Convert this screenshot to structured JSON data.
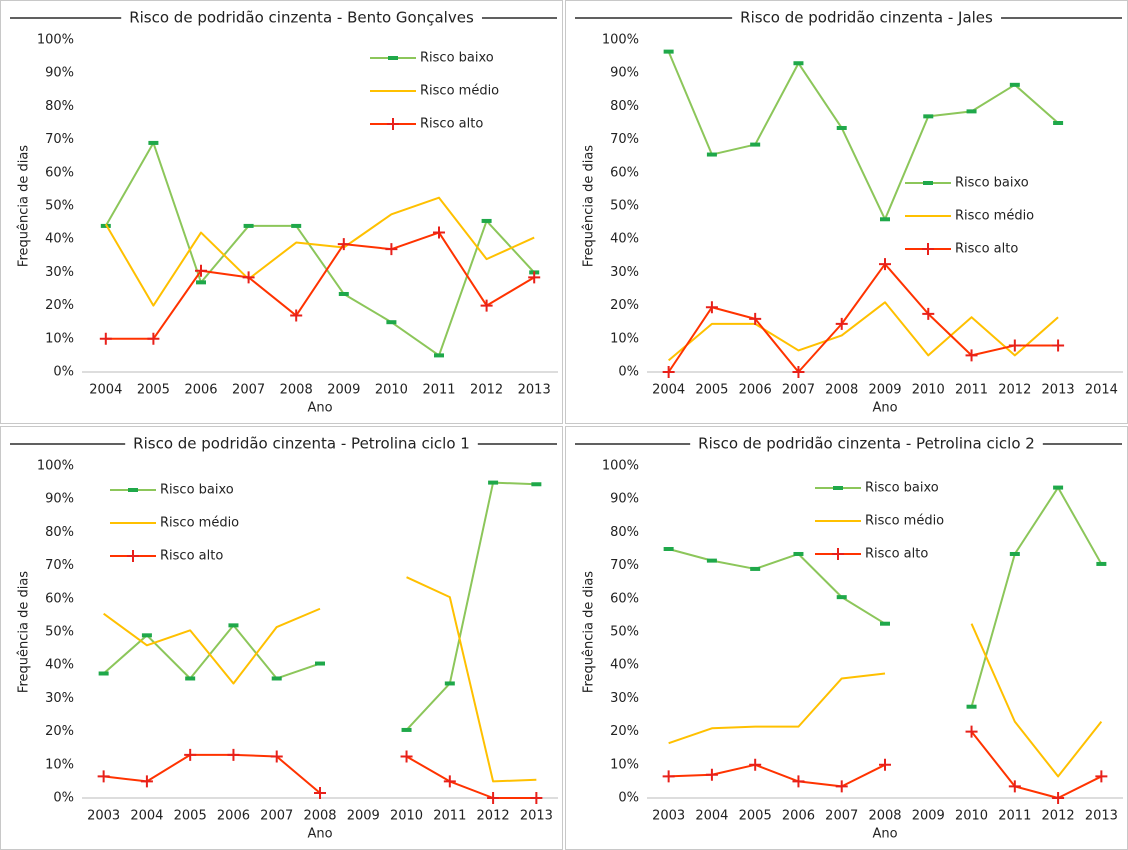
{
  "chart_data": [
    {
      "type": "line",
      "title": "Risco de podridão cinzenta - Bento Gonçalves",
      "x_label": "Ano",
      "y_label": "Frequência de dias",
      "categories": [
        "2004",
        "2005",
        "2006",
        "2007",
        "2008",
        "2009",
        "2010",
        "2011",
        "2012",
        "2013"
      ],
      "ylim": [
        0,
        100
      ],
      "yticks": [
        {
          "value": 0,
          "label": "0%"
        },
        {
          "value": 10,
          "label": "10%"
        },
        {
          "value": 20,
          "label": "20%"
        },
        {
          "value": 30,
          "label": "30%"
        },
        {
          "value": 40,
          "label": "40%"
        },
        {
          "value": 50,
          "label": "50%"
        },
        {
          "value": 60,
          "label": "60%"
        },
        {
          "value": 70,
          "label": "70%"
        },
        {
          "value": 80,
          "label": "80%"
        },
        {
          "value": 90,
          "label": "90%"
        },
        {
          "value": 100,
          "label": "100%"
        }
      ],
      "grid": false,
      "legend": "upper right",
      "series": [
        {
          "name": "Risco baixo",
          "color": "#8cc65a",
          "marker": "dash",
          "values": [
            44,
            69,
            27,
            44,
            44,
            23.5,
            15,
            5,
            45.5,
            30
          ]
        },
        {
          "name": "Risco médio",
          "color": "#ffc000",
          "marker": "none",
          "values": [
            44.5,
            20,
            42,
            28,
            39,
            37.5,
            47.5,
            52.5,
            34,
            40.5
          ]
        },
        {
          "name": "Risco alto",
          "color": "#ff3300",
          "marker": "plus",
          "values": [
            10,
            10,
            30.5,
            28.5,
            17,
            38.5,
            37,
            42,
            20,
            28.5
          ]
        }
      ]
    },
    {
      "type": "line",
      "title": "Risco de podridão cinzenta - Jales",
      "x_label": "Ano",
      "y_label": "Frequência de dias",
      "categories": [
        "2004",
        "2005",
        "2006",
        "2007",
        "2008",
        "2009",
        "2010",
        "2011",
        "2012",
        "2013",
        "2014"
      ],
      "ylim": [
        0,
        100
      ],
      "yticks": [
        {
          "value": 0,
          "label": "0%"
        },
        {
          "value": 10,
          "label": "10%"
        },
        {
          "value": 20,
          "label": "20%"
        },
        {
          "value": 30,
          "label": "30%"
        },
        {
          "value": 40,
          "label": "40%"
        },
        {
          "value": 50,
          "label": "50%"
        },
        {
          "value": 60,
          "label": "60%"
        },
        {
          "value": 70,
          "label": "70%"
        },
        {
          "value": 80,
          "label": "80%"
        },
        {
          "value": 90,
          "label": "90%"
        },
        {
          "value": 100,
          "label": "100%"
        }
      ],
      "grid": false,
      "legend": "center right",
      "series": [
        {
          "name": "Risco baixo",
          "color": "#8cc65a",
          "marker": "dash",
          "values": [
            96.5,
            65.5,
            68.5,
            93,
            73.5,
            46,
            77,
            78.5,
            86.5,
            75,
            null
          ]
        },
        {
          "name": "Risco médio",
          "color": "#ffc000",
          "marker": "none",
          "values": [
            3.5,
            14.5,
            14.5,
            6.5,
            11,
            21,
            5,
            16.5,
            5,
            16.5,
            null
          ]
        },
        {
          "name": "Risco alto",
          "color": "#ff3300",
          "marker": "plus",
          "values": [
            0,
            19.5,
            16,
            0,
            14.5,
            32.5,
            17.5,
            5,
            8,
            8,
            null
          ]
        }
      ]
    },
    {
      "type": "line",
      "title": "Risco de podridão cinzenta - Petrolina ciclo 1",
      "x_label": "Ano",
      "y_label": "Frequência de dias",
      "categories": [
        "2003",
        "2004",
        "2005",
        "2006",
        "2007",
        "2008",
        "2009",
        "2010",
        "2011",
        "2012",
        "2013"
      ],
      "ylim": [
        0,
        100
      ],
      "yticks": [
        {
          "value": 0,
          "label": "0%"
        },
        {
          "value": 10,
          "label": "10%"
        },
        {
          "value": 20,
          "label": "20%"
        },
        {
          "value": 30,
          "label": "30%"
        },
        {
          "value": 40,
          "label": "40%"
        },
        {
          "value": 50,
          "label": "50%"
        },
        {
          "value": 60,
          "label": "60%"
        },
        {
          "value": 70,
          "label": "70%"
        },
        {
          "value": 80,
          "label": "80%"
        },
        {
          "value": 90,
          "label": "90%"
        },
        {
          "value": 100,
          "label": "100%"
        }
      ],
      "grid": false,
      "legend": "upper left",
      "series": [
        {
          "name": "Risco baixo",
          "color": "#8cc65a",
          "marker": "dash",
          "values": [
            37.5,
            49,
            36,
            52,
            36,
            40.5,
            null,
            20.5,
            34.5,
            95,
            94.5
          ]
        },
        {
          "name": "Risco médio",
          "color": "#ffc000",
          "marker": "none",
          "values": [
            55.5,
            46,
            50.5,
            34.5,
            51.5,
            57,
            null,
            66.5,
            60.5,
            5,
            5.5
          ]
        },
        {
          "name": "Risco alto",
          "color": "#ff3300",
          "marker": "plus",
          "values": [
            6.5,
            5,
            13,
            13,
            12.5,
            1.5,
            null,
            12.5,
            5,
            0,
            0
          ]
        }
      ]
    },
    {
      "type": "line",
      "title": "Risco de podridão cinzenta - Petrolina ciclo 2",
      "x_label": "Ano",
      "y_label": "Frequência de dias",
      "categories": [
        "2003",
        "2004",
        "2005",
        "2006",
        "2007",
        "2008",
        "2009",
        "2010",
        "2011",
        "2012",
        "2013"
      ],
      "ylim": [
        0,
        100
      ],
      "yticks": [
        {
          "value": 0,
          "label": "0%"
        },
        {
          "value": 10,
          "label": "10%"
        },
        {
          "value": 20,
          "label": "20%"
        },
        {
          "value": 30,
          "label": "30%"
        },
        {
          "value": 40,
          "label": "40%"
        },
        {
          "value": 50,
          "label": "50%"
        },
        {
          "value": 60,
          "label": "60%"
        },
        {
          "value": 70,
          "label": "70%"
        },
        {
          "value": 80,
          "label": "80%"
        },
        {
          "value": 90,
          "label": "90%"
        },
        {
          "value": 100,
          "label": "100%"
        }
      ],
      "grid": false,
      "legend": "upper center",
      "series": [
        {
          "name": "Risco baixo",
          "color": "#8cc65a",
          "marker": "dash",
          "values": [
            75,
            71.5,
            69,
            73.5,
            60.5,
            52.5,
            null,
            27.5,
            73.5,
            93.5,
            70.5
          ]
        },
        {
          "name": "Risco médio",
          "color": "#ffc000",
          "marker": "none",
          "values": [
            16.5,
            21,
            21.5,
            21.5,
            36,
            37.5,
            null,
            52.5,
            23,
            6.5,
            23
          ]
        },
        {
          "name": "Risco alto",
          "color": "#ff3300",
          "marker": "plus",
          "values": [
            6.5,
            7,
            10,
            5,
            3.5,
            10,
            null,
            20,
            3.5,
            0,
            6.5
          ]
        }
      ]
    }
  ]
}
